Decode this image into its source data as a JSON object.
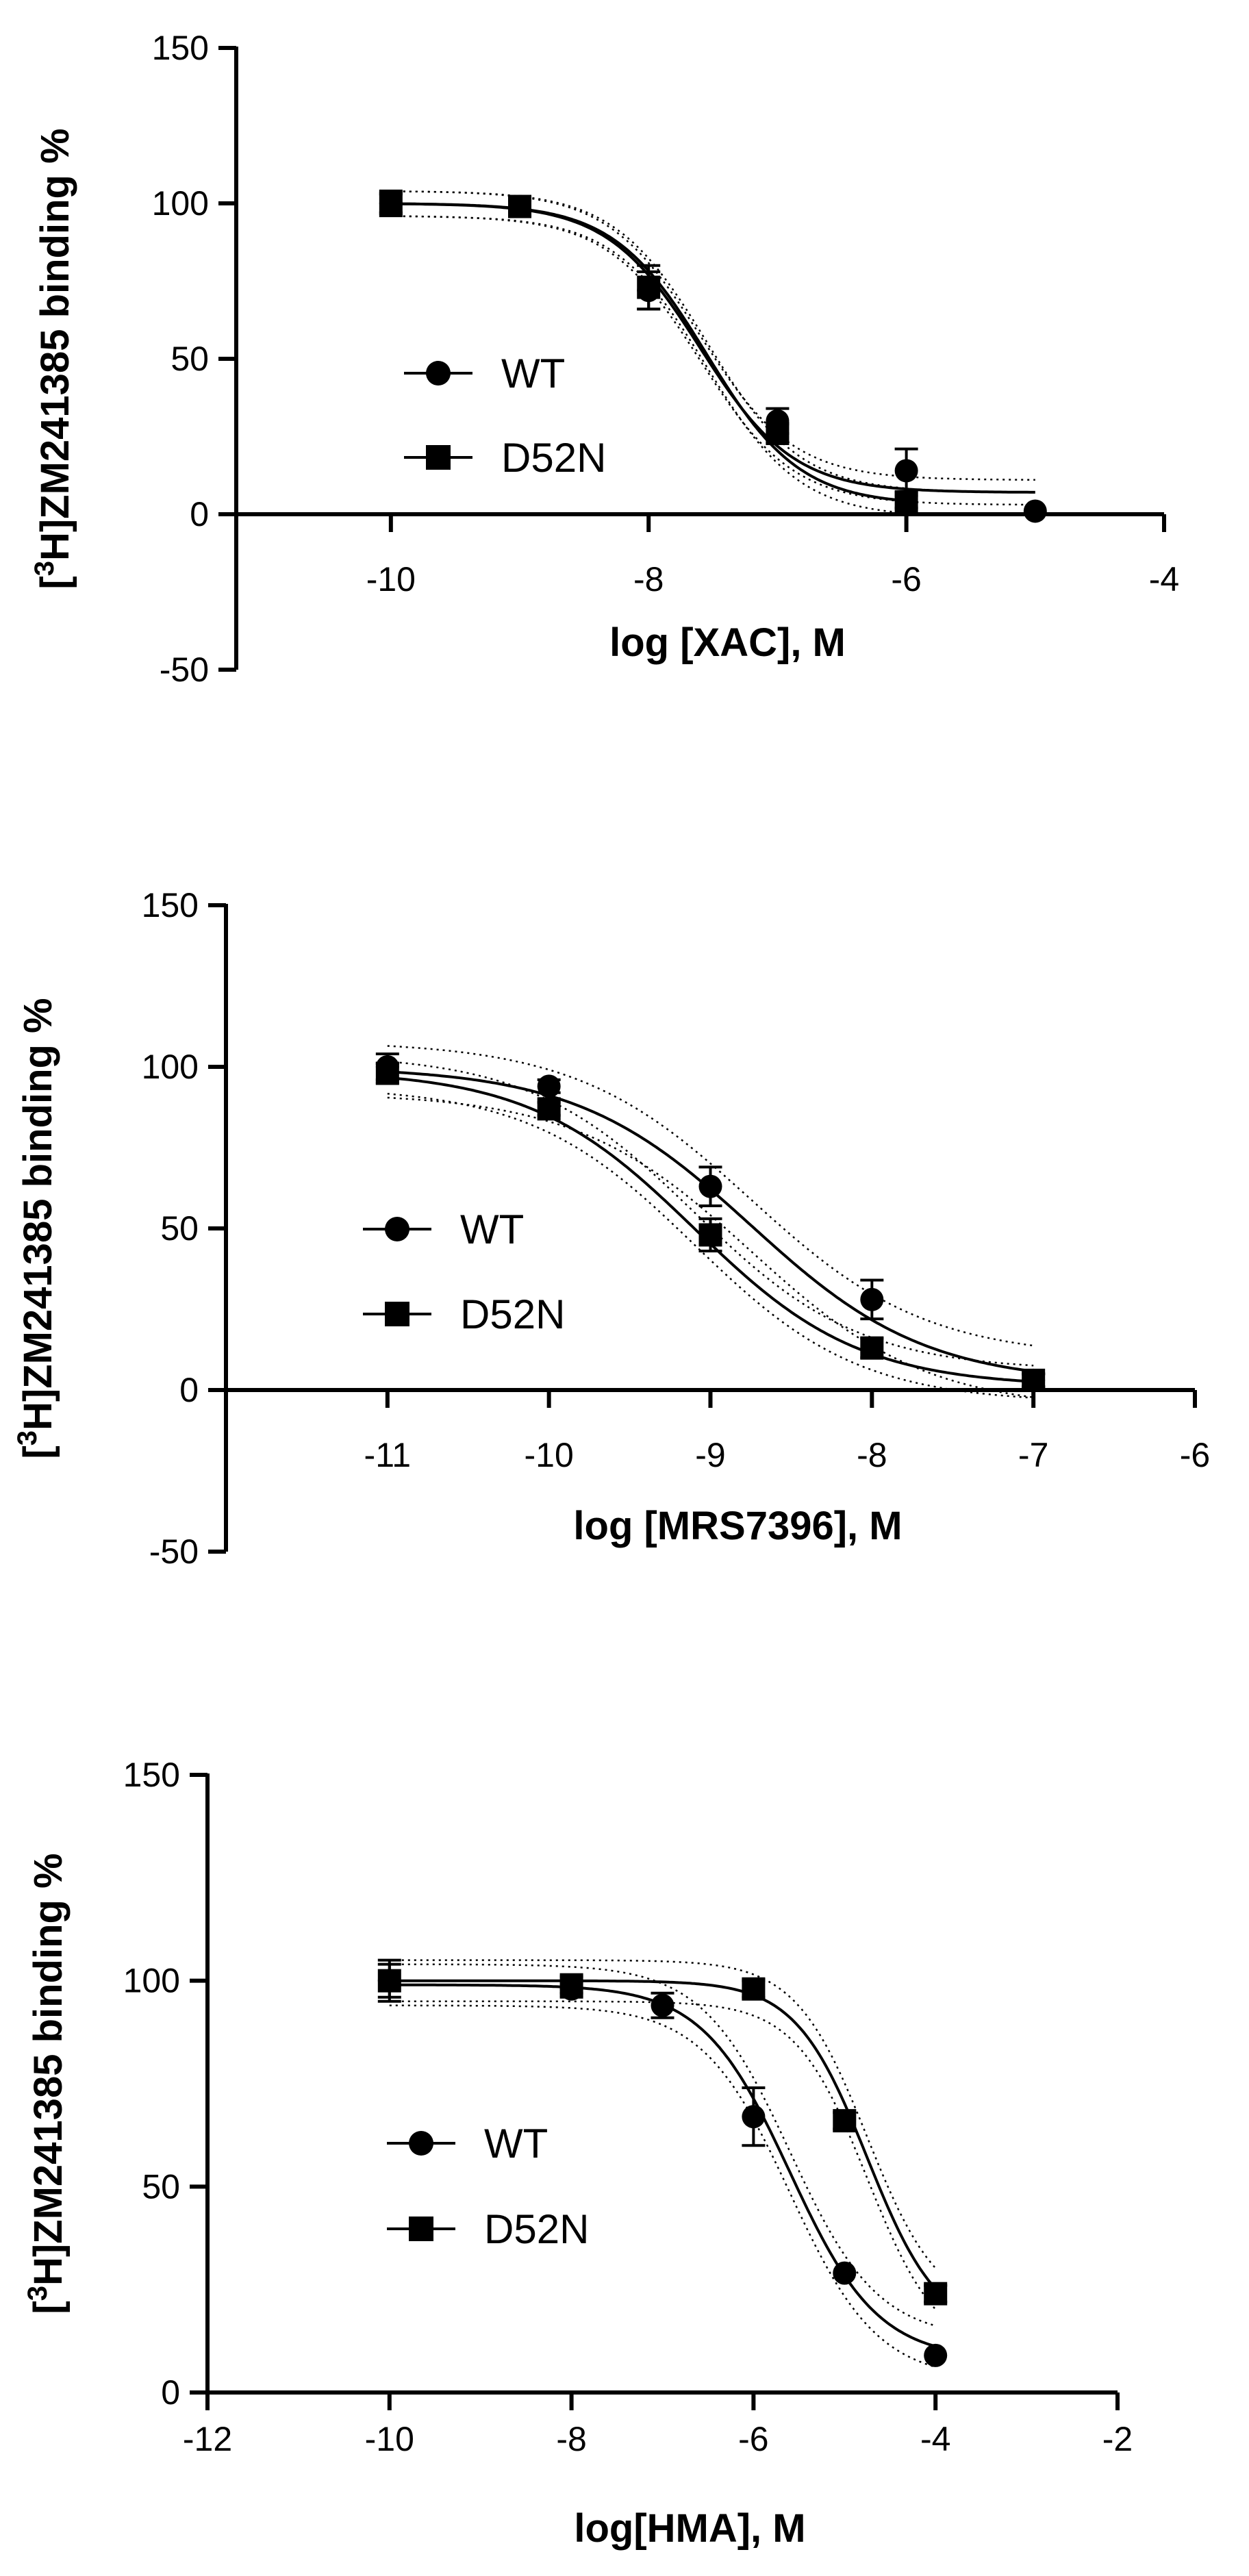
{
  "chart_data": [
    {
      "type": "scatter",
      "title": "",
      "xlabel": "log [XAC], M",
      "ylabel_base": "H]ZM241385 binding %",
      "ylabel_sup": "3",
      "xlim": [
        -11.2,
        -4
      ],
      "ylim": [
        -50,
        150
      ],
      "xticks": [
        -10,
        -8,
        -6,
        -4
      ],
      "xtick_labels": [
        "-10",
        "-8",
        "-6",
        "-4"
      ],
      "yticks": [
        -50,
        0,
        50,
        100,
        150
      ],
      "ytick_labels": [
        "-50",
        "0",
        "50",
        "100",
        "150"
      ],
      "grid": false,
      "legend_position": "center-left",
      "series": [
        {
          "name": "WT",
          "marker": "circle",
          "x": [
            -10,
            -9,
            -8,
            -7,
            -6,
            -5
          ],
          "y": [
            100,
            99,
            72,
            30,
            14,
            1
          ],
          "err": [
            4,
            2,
            6,
            4,
            7,
            0
          ],
          "fit": {
            "top": 100,
            "bottom": 7,
            "logIC50": -7.6,
            "hill": 1.2
          },
          "ci": 4
        },
        {
          "name": "D52N",
          "marker": "square",
          "x": [
            -10,
            -9,
            -8,
            -7,
            -6
          ],
          "y": [
            100,
            99,
            73,
            26,
            4
          ],
          "err": [
            3,
            3,
            7,
            3,
            2
          ],
          "fit": {
            "top": 100,
            "bottom": 3,
            "logIC50": -7.55,
            "hill": 1.2
          },
          "ci": 4
        }
      ]
    },
    {
      "type": "scatter",
      "title": "",
      "xlabel": "log [MRS7396], M",
      "ylabel_base": "H]ZM241385 binding %",
      "ylabel_sup": "3",
      "xlim": [
        -12,
        -6
      ],
      "ylim": [
        -50,
        150
      ],
      "xticks": [
        -11,
        -10,
        -9,
        -8,
        -7,
        -6
      ],
      "xtick_labels": [
        "-11",
        "-10",
        "-9",
        "-8",
        "-7",
        "-6"
      ],
      "yticks": [
        -50,
        0,
        50,
        100,
        150
      ],
      "ytick_labels": [
        "-50",
        "0",
        "50",
        "100",
        "150"
      ],
      "grid": false,
      "legend_position": "center-left",
      "series": [
        {
          "name": "WT",
          "marker": "circle",
          "x": [
            -11,
            -10,
            -9,
            -8,
            -7
          ],
          "y": [
            100,
            94,
            63,
            28,
            3
          ],
          "err": [
            4,
            2,
            6,
            6,
            2
          ],
          "fit": {
            "top": 100,
            "bottom": 2,
            "logIC50": -8.75,
            "hill": 0.8
          },
          "ci": 8
        },
        {
          "name": "D52N",
          "marker": "square",
          "x": [
            -11,
            -10,
            -9,
            -8,
            -7
          ],
          "y": [
            98,
            87,
            48,
            13,
            3
          ],
          "err": [
            3,
            2,
            5,
            3,
            2
          ],
          "fit": {
            "top": 99,
            "bottom": 1,
            "logIC50": -9.1,
            "hill": 0.85
          },
          "ci": 5
        }
      ]
    },
    {
      "type": "scatter",
      "title": "",
      "xlabel": "log[HMA], M",
      "ylabel_base": "H]ZM241385 binding %",
      "ylabel_sup": "3",
      "xlim": [
        -12,
        -2
      ],
      "ylim": [
        0,
        150
      ],
      "xticks": [
        -12,
        -10,
        -8,
        -6,
        -4,
        -2
      ],
      "xtick_labels": [
        "-12",
        "-10",
        "-8",
        "-6",
        "-4",
        "-2"
      ],
      "yticks": [
        0,
        50,
        100,
        150
      ],
      "ytick_labels": [
        "0",
        "50",
        "100",
        "150"
      ],
      "grid": false,
      "legend_position": "center-left",
      "series": [
        {
          "name": "WT",
          "marker": "circle",
          "x": [
            -10,
            -8,
            -7,
            -6,
            -5,
            -4
          ],
          "y": [
            100,
            98,
            94,
            67,
            29,
            9
          ],
          "err": [
            5,
            2,
            3,
            7,
            0,
            0
          ],
          "fit": {
            "top": 99,
            "bottom": 8,
            "logIC50": -5.6,
            "hill": 0.9
          },
          "ci": 5
        },
        {
          "name": "D52N",
          "marker": "square",
          "x": [
            -10,
            -8,
            -6,
            -5,
            -4
          ],
          "y": [
            100,
            99,
            98,
            66,
            24
          ],
          "err": [
            4,
            2,
            2,
            2,
            2
          ],
          "fit": {
            "top": 100,
            "bottom": 14,
            "logIC50": -4.75,
            "hill": 1.1
          },
          "ci": 5
        }
      ]
    }
  ]
}
